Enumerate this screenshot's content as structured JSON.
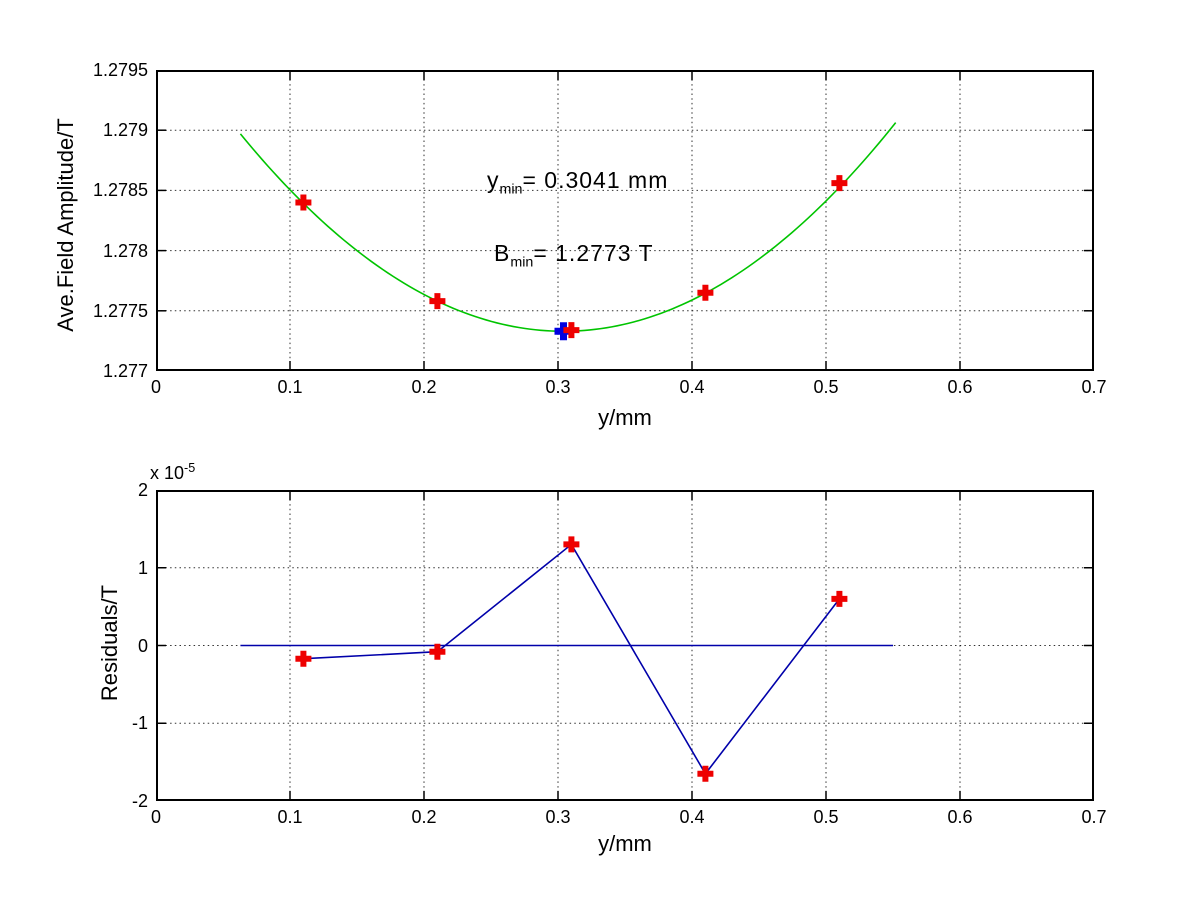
{
  "figure": {
    "background": "#ffffff",
    "frame_color": "#000000",
    "grid_color": "#000000"
  },
  "chart_data": [
    {
      "type": "scatter",
      "title": "",
      "xlabel": "y/mm",
      "ylabel": "Ave.Field Amplitude/T",
      "xlim": [
        0,
        0.7
      ],
      "ylim": [
        1.277,
        1.2795
      ],
      "grid": true,
      "legend": "none",
      "xticks": {
        "values": [
          0,
          0.1,
          0.2,
          0.3,
          0.4,
          0.5,
          0.6,
          0.7
        ],
        "labels": [
          "0",
          "0.1",
          "0.2",
          "0.3",
          "0.4",
          "0.5",
          "0.6",
          "0.7"
        ]
      },
      "yticks": {
        "values": [
          1.2795,
          1.279,
          1.2785,
          1.278,
          1.2775,
          1.277
        ],
        "labels": [
          "1.2795",
          "1.279",
          "1.2785",
          "1.278",
          "1.2775",
          "1.277"
        ]
      },
      "series": [
        {
          "name": "parabola-fit",
          "type": "parabola",
          "color": "#00c400",
          "vertex": [
            0.3041,
            1.27733
          ],
          "coeff": 0.0282,
          "x_range": [
            0.063,
            0.552
          ]
        },
        {
          "name": "fit-minimum-point",
          "type": "scatter",
          "marker": "plus",
          "color": "#0000e0",
          "points": [
            [
              0.3041,
              1.27733
            ]
          ]
        },
        {
          "name": "measured-points",
          "type": "scatter",
          "marker": "plus",
          "color": "#ee0000",
          "points": [
            [
              0.11,
              1.2784
            ],
            [
              0.21,
              1.27758
            ],
            [
              0.31,
              1.27734
            ],
            [
              0.41,
              1.27765
            ],
            [
              0.51,
              1.27856
            ]
          ]
        }
      ],
      "annotations": {
        "ymin": {
          "base": "y",
          "sub": "min",
          "rest": "= 0.3041 mm"
        },
        "bmin": {
          "base": "B",
          "sub": "min",
          "rest": "= 1.2773 T"
        }
      }
    },
    {
      "type": "line",
      "title": "",
      "xlabel": "y/mm",
      "ylabel": "Residuals/T",
      "exponent": {
        "prefix": "x 10",
        "value": "-5"
      },
      "y_unit_multiplier": "1e-5",
      "xlim": [
        0,
        0.7
      ],
      "ylim": [
        -2,
        2
      ],
      "grid": true,
      "legend": "none",
      "xticks": {
        "values": [
          0,
          0.1,
          0.2,
          0.3,
          0.4,
          0.5,
          0.6,
          0.7
        ],
        "labels": [
          "0",
          "0.1",
          "0.2",
          "0.3",
          "0.4",
          "0.5",
          "0.6",
          "0.7"
        ]
      },
      "yticks": {
        "values": [
          2,
          1,
          0,
          -1,
          -2
        ],
        "labels": [
          "2",
          "1",
          "0",
          "-1",
          "-2"
        ]
      },
      "series": [
        {
          "name": "zero-reference-line",
          "type": "line",
          "color": "#0000aa",
          "points": [
            [
              0.063,
              0
            ],
            [
              0.55,
              0
            ]
          ]
        },
        {
          "name": "residuals-line",
          "type": "line+scatter",
          "line_color": "#0000aa",
          "marker": "plus",
          "marker_color": "#ee0000",
          "points": [
            [
              0.11,
              -0.17
            ],
            [
              0.21,
              -0.08
            ],
            [
              0.31,
              1.3
            ],
            [
              0.41,
              -1.65
            ],
            [
              0.51,
              0.6
            ]
          ]
        }
      ]
    }
  ]
}
